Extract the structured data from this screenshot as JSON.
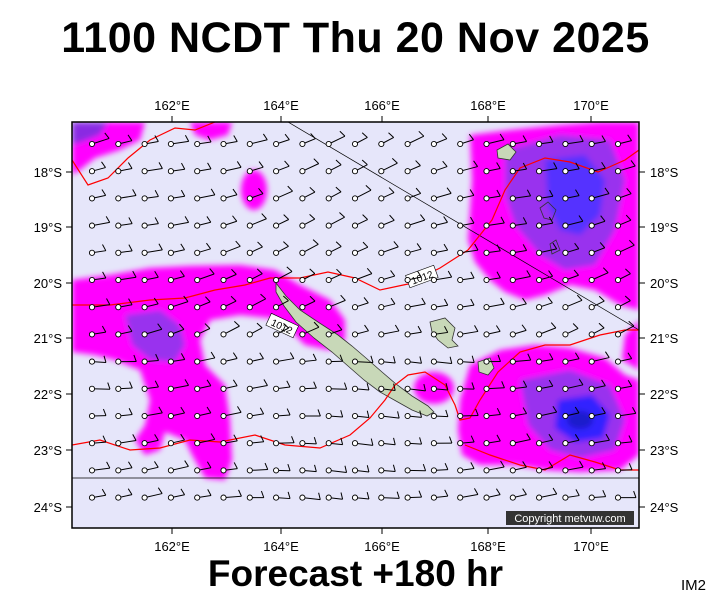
{
  "title": "1100 NCDT Thu 20 Nov 2025",
  "footer": "Forecast +180 hr",
  "code": "IM2",
  "copyright": "Copyright metvuw.com",
  "map": {
    "lon_ticks": [
      "162°E",
      "164°E",
      "166°E",
      "168°E",
      "170°E"
    ],
    "lat_ticks": [
      "18°S",
      "19°S",
      "20°S",
      "21°S",
      "22°S",
      "23°S",
      "24°S"
    ],
    "isobar_labels": [
      "1012",
      "1012"
    ],
    "colors": {
      "background": "#e6e6fa",
      "rain_light": "#ff00ff",
      "rain_moderate": "#9933ee",
      "rain_heavy": "#5533ff",
      "rain_very_heavy": "#2222dd",
      "isobar": "#ff0000",
      "land": "#c8d8b8",
      "barb": "#000000"
    }
  }
}
